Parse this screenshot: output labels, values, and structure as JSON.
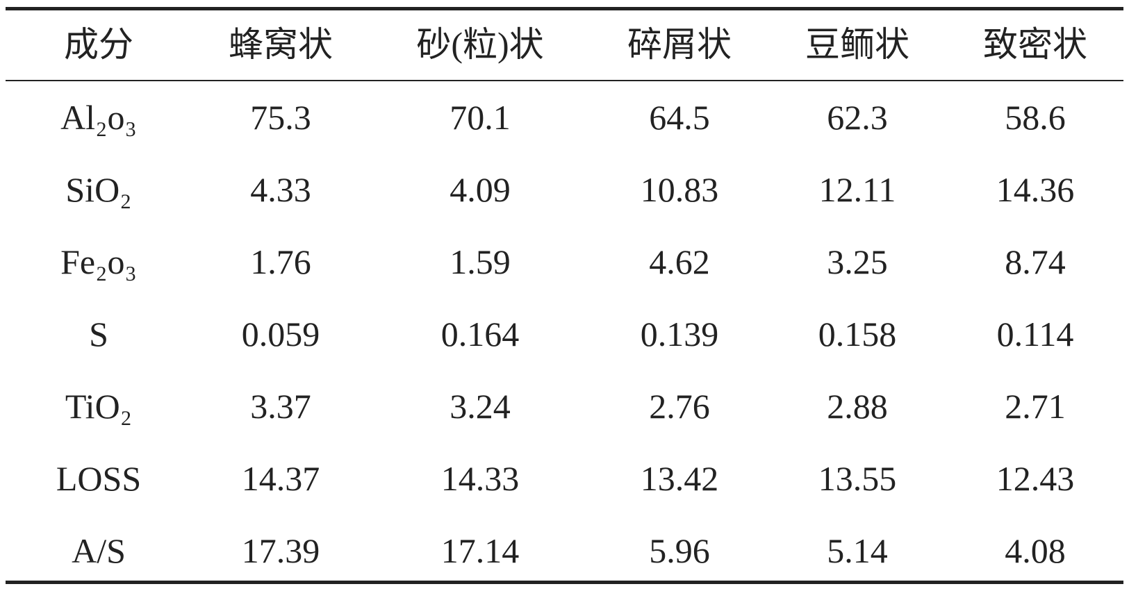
{
  "table": {
    "header": [
      "成分",
      "蜂窝状",
      "砂(粒)状",
      "碎屑状",
      "豆鲕状",
      "致密状"
    ],
    "rows": [
      [
        "Al₂o₃",
        "75.3",
        "70.1",
        "64.5",
        "62.3",
        "58.6"
      ],
      [
        "SiO₂",
        "4.33",
        "4.09",
        "10.83",
        "12.11",
        "14.36"
      ],
      [
        "Fe₂o₃",
        "1.76",
        "1.59",
        "4.62",
        "3.25",
        "8.74"
      ],
      [
        "S",
        "0.059",
        "0.164",
        "0.139",
        "0.158",
        "0.114"
      ],
      [
        "TiO₂",
        "3.37",
        "3.24",
        "2.76",
        "2.88",
        "2.71"
      ],
      [
        "LOSS",
        "14.37",
        "14.33",
        "13.42",
        "13.55",
        "12.43"
      ],
      [
        "A/S",
        "17.39",
        "17.14",
        "5.96",
        "5.14",
        "4.08"
      ]
    ]
  }
}
